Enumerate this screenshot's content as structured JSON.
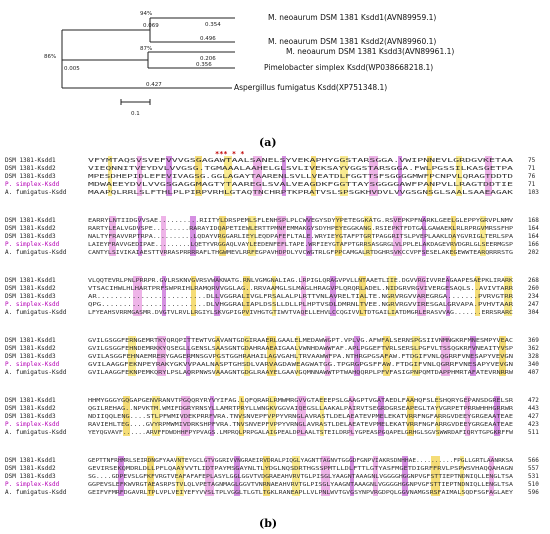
{
  "panel_a": {
    "label": "(a)",
    "leaves": [
      {
        "name": "M. neoaurum DSM 1381 Ksdd1(AVN89959.1)"
      },
      {
        "name": "M. neoaurum DSM 1381 Ksdd2(AVN89960.1)"
      },
      {
        "name": "M. neoaurum DSM 1381 Ksdd3(AVN89961.1)"
      },
      {
        "name": "Pimelobacter simplex Ksdd(WP038668218.1)"
      },
      {
        "name": "Aspergillus fumigatus Ksdd(XP751348.1)"
      }
    ],
    "bootstraps": {
      "b1": "94%",
      "b2": "87%",
      "b3": "86%"
    },
    "branch_lengths": {
      "l1": "0.354",
      "l2": "0.069",
      "l3": "0.496",
      "l4": "0.206",
      "l5": "0.356",
      "l6": "0.005",
      "l7": "0.427"
    },
    "scale_label": "0.1"
  },
  "panel_b": {
    "label": "(b)",
    "blocks": [
      {
        "stars": "***     *      *",
        "rows": [
          {
            "name": "DSM 1381-Ksdd1",
            "seq": "VFYMTAQSVSVEFVVVGSGAGAWTAALSANELSYVEKAPHYGGSTARSGGA.VWIPNNEVLGRDGVKETAA",
            "num": "75"
          },
          {
            "name": "DSM 1381-Ksdd2",
            "seq": "VIEQNNITVEYDVLVVGSG.TGMAAALAAHELGLSVLIVEKSAYVGGSTARSGGA.FWLPGSSILKASGETPA",
            "num": "71"
          },
          {
            "name": "DSM 1381-Ksdd3",
            "seq": "MPESDHEPIDLEFEVIVAGSG.GGLAGAYTAARENLSVLLVEATDLFGGTTSFSGGGGMWFPCNPVLQRAGTDDTD",
            "num": "76"
          },
          {
            "name": "P. simplex-Ksdd",
            "seq": "MDWAEEYDVLVVGSGAGGMAGTYTAAREGLSVALVEAGDKFGGTTAYSGGGGAWFPANPVLLRAGTDDTIE",
            "num": "71"
          },
          {
            "name": "A. fumigatus-Ksdd",
            "seq": "MAAPQLRRLSLFTHLPLPIRPVRHLGTAQTNCHRPTKPRATVSLSPSGKHVDVLVVGSGNSGLSAALSAAEAGAK",
            "num": "103"
          }
        ]
      },
      {
        "stars": "",
        "rows": [
          {
            "name": "DSM 1381-Ksdd1",
            "seq": "EARRYLNTIIDGVVSAE..........RIITYLDRSPEMLSFLENHSPLPLCWVEGYSDYYPETEGGKATG.RSVEPKPFNARKLGEELGLEPPYGRVPLNMV",
            "num": "168"
          },
          {
            "name": "DSM 1381-Ksdd2",
            "seq": "RARTYLEALVGDVSPE.........RARAYIDQAPETIEWLERTTPMNFEMMAKGYSDYHPEYEGGKANG.RSIEPKTFDTGALGAWAEKLRLRPRGVMRSSFHP",
            "num": "164"
          },
          {
            "name": "DSM 1381-Ksdd3",
            "seq": "NALTYFRAVVRPTRPA..........LQDAYVRGGARLIEYLEQDPAFEFLTALE.WRYIEYGTAFPTGRTPAGGRITSLPVEPLAAKLDAYGVRIGLTERLSPA",
            "num": "164"
          },
          {
            "name": "P. simplex-Ksdd",
            "seq": "LAIEYFRAVVGEDIPAE.........LQETYVRGGAQLVAYLEEDENFEFLTAPE.WRFIEYGTAFPTGRRSASGRGLVLPPLELAKDAGEVRVDGRLGLSEERMGSP",
            "num": "166"
          },
          {
            "name": "A. fumigatus-Ksdd",
            "seq": "CANTYLSIVIKAIAESTTVRRASPRRRRAFLTHGWMEVLRRFEGPAVHDPDLYVCWGTRLGFPPCAMGALRTDGHRSVKCCVPFSESELAKEGEWWTEARQRRRSTG",
            "num": "202"
          }
        ]
      },
      {
        "stars": "",
        "rows": [
          {
            "name": "DSM 1381-Ksdd1",
            "seq": "VLQQTEVRLPNLPRRPR.GVLRSKNVGVRSVWAKNATG.RNLVGMGNALIAG.LRPIGLQRAGVPVLLNTAAETLIIE.DGVVRGIVVREAGAAPESAEPKLIRARK",
            "num": "268"
          },
          {
            "name": "DSM 1381-Ksdd2",
            "seq": "VTSACIHWLHLHARTPRFSWPRIHLRAMQRVVGGLAG..RRVAAMGLSLMAGLHRAGVPLQRQRLADEL.NIDGRVRGVIVERGESAQLS..AVIVTARR",
            "num": "260"
          },
          {
            "name": "DSM 1381-Ksdd3",
            "seq": "AR.........................DLLVGGRALIVGLFRSALALPLRTTVNLAVRELTIALTE.NGRVRGVVAREGRGA.......PVRVGTRR",
            "num": "234"
          },
          {
            "name": "P. simplex-Ksdd",
            "seq": "QPG........................DLVHGGRALIAPLDSSLLDLLPLHPTVSDLDMRNLTVEE.NGRVRGVVIRESGALGRVAPA.PVHVTAAR",
            "num": "247"
          },
          {
            "name": "A. fumigatus-Ksdd",
            "seq": "LFYEAHSVRRMGASMR.DVGTVLRVLLRGIYLSKVGPIGPVIVHGTGTIWVTVAQELLEHVLCCQGIVVLTDTGAILIATDMGRLERASVVAG.......ERRSRARC",
            "num": "304"
          }
        ]
      },
      {
        "stars": "",
        "rows": [
          {
            "name": "DSM 1381-Ksdd1",
            "seq": "GVILGSGGFERNGEMRTKYQRQPITTEWTVGAVANTGDGIRAAERLGAALELMEDAWWGPT.VPLVG.AFWFALSERNSPGSIIVNMNGKRFMNESMPYVEAC",
            "num": "369"
          },
          {
            "name": "DSM 1381-Ksdd2",
            "seq": "GVILGSGGFEHNDEMRKKYQSEGLLGENSLSAASGNTGDAHRAAEAIGAALVWNHDAWWFAF.APLPGGEFTVRLSERSLPGFVLTSSQGKRFVNEAITYVSP",
            "num": "362"
          },
          {
            "name": "DSM 1381-Ksdd3",
            "seq": "GVILASGGFEHNAEMRERYGAGERMNSGVPGSTGGHRAHAILAGVGAHLTRVAAWWFPA.NTHRGPGSAFAW.FTDGIFVNLQGRRFVNESAPYVEVGN",
            "num": "328"
          },
          {
            "name": "P. simplex-Ksdd",
            "seq": "GVILAAGGFEKNPEYRAKYGKVVPAALNASPTGHSDLVARVAGDAWEAGWATGG.TPGRGPGSFFAW.FTDGIFVNLQGRRFVNESAPYVEVGN",
            "num": "340"
          },
          {
            "name": "A. fumigatus-Ksdd",
            "seq": "GVILAAGGFEKNPEMKQRYLPSLAQRPNWSVAAAGNTGDGLRAAYELGAAVGQMNNAWWTPTWAHQQRPLPFVFASIGPNPQMTDAPPHMRTAFATEVRNRRW",
            "num": "407"
          }
        ]
      },
      {
        "stars": "",
        "rows": [
          {
            "name": "DSM 1381-Ksdd1",
            "seq": "HHMYGGGYGQGAPGENVRANVTPGQQRYRYVYIFAG.LQFQRARLRMWMRGVVGTAEEEPSLGAAGPTVGATAEDLFAAHQFSLESHQRYGEPANSDGRELSR",
            "num": "472"
          },
          {
            "name": "DSM 1381-Ksdd2",
            "seq": "QGILREHAG..NPVKTM.WMIFDGRYRNSYLLAMRTPRYLLWNGKVGGVAIQEGSLLAAKALPAIRVTSEGRDGRSEAPEGLTAYVGRPETPRRWHHHGRRWR",
            "num": "443"
          },
          {
            "name": "DSM 1381-Ksdd3",
            "seq": "NDIIQQLENG....STLPFWMIVDEKPRRFVRA.TNVSNVEPFVPPYVRNGLAVRASTLDELAEATEVPMELEKATVRRFNGFARRGVDEEYGRGEAATEAE",
            "num": "427"
          },
          {
            "name": "P. simplex-Ksdd",
            "seq": "RAVIEHLTEG....GVYRPMWMIVDRKSHPFVRA.TNVSNVEPFVPPYVRNGLAVRASTLDELAEATEVPMELEKATVRRFNGFARRGVDEEYGRGEAATEAE",
            "num": "423"
          },
          {
            "name": "A. fumigatus-Ksdd",
            "seq": "YEYQGVAVF......ARVFFDWDHHFPYPVAGS.LMPRQLPRPGALAIGPEALDPLAALTSTEILDRPLYGPEASPGQAPELGRHGLSGVSWWRDAFIQRYTGPGKRFFW",
            "num": "511"
          }
        ]
      },
      {
        "stars": "",
        "rows": [
          {
            "name": "DSM 1381-Ksdd1",
            "seq": "GEPTTNFRHMRLSEIRDNGFYAAVNTEYGCLGTVGGRIVVNGRAEIRVDRALPIQGLYAGNTTAGNVTGGGDFGNPVIAKRSDNHHAE..........FPGLLGRTLAANRKSA",
            "num": "566"
          },
          {
            "name": "DSM 1381-Ksdd2",
            "seq": "GEVIRSEKQMDRLDLLPFLQAAYVVTLIDTPAYMSGAYNLTLYDGLNQSDRTHGSSPMTLLDLFTTLGTYASFMGETDIGRFFRVLPSPWSVHAQQAHAGN",
            "num": "557"
          },
          {
            "name": "DSM 1381-Ksdd3",
            "seq": "SG....GDPEVSLGFKFVRGTVEAFAFAFEPLASYLGGLGGVTVDGRAEAHVRVTGLPISGLYAAGNTAAAGNLVGGGGHGGNPVGFSTTIEPTNDNIQLLENGLTSA",
            "num": "531"
          },
          {
            "name": "P. simplex-Ksdd",
            "seq": "GGPEVSLEFKWVRGTAEASRPSTVLQLVPETAGNMAGLGGVTVNRNAEAHVRVTGLPISGLYAAGNTAAAGNLVGGGGHGGNPVGFSTTIEPTNDNIQLLENGLTSA",
            "num": "510"
          },
          {
            "name": "A. fumigatus-Ksdd",
            "seq": "GEIFVFMRFDGAVRLTPLVPLVEIYEFYVVSLTPLVGGLTLGTLTGKLRANEAPLLVLPNLWVTGVGSYNPVRGDPQLGGVNAMGSRSFAIMALSQDFSGFAGLAEY",
            "num": "596"
          }
        ]
      }
    ]
  }
}
